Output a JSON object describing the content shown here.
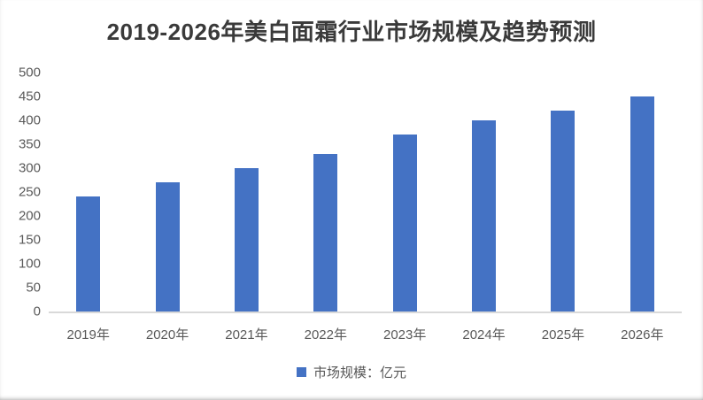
{
  "chart_data": {
    "type": "bar",
    "title": "2019-2026年美白面霜行业市场规模及趋势预测",
    "categories": [
      "2019年",
      "2020年",
      "2021年",
      "2022年",
      "2023年",
      "2024年",
      "2025年",
      "2026年"
    ],
    "series": [
      {
        "name": "市场规模：亿元",
        "values": [
          240,
          270,
          300,
          330,
          370,
          400,
          420,
          450
        ]
      }
    ],
    "legend_label": "市场规模：亿元",
    "legend_position": "bottom",
    "xlabel": "",
    "ylabel": "",
    "ylim": [
      0,
      500
    ],
    "yticks": [
      0,
      50,
      100,
      150,
      200,
      250,
      300,
      350,
      400,
      450,
      500
    ],
    "grid": false,
    "colors": {
      "bar": "#4472C4",
      "title_text": "#3a3a3a",
      "axis_text": "#595959",
      "axis_line": "#d9d9d9"
    }
  }
}
